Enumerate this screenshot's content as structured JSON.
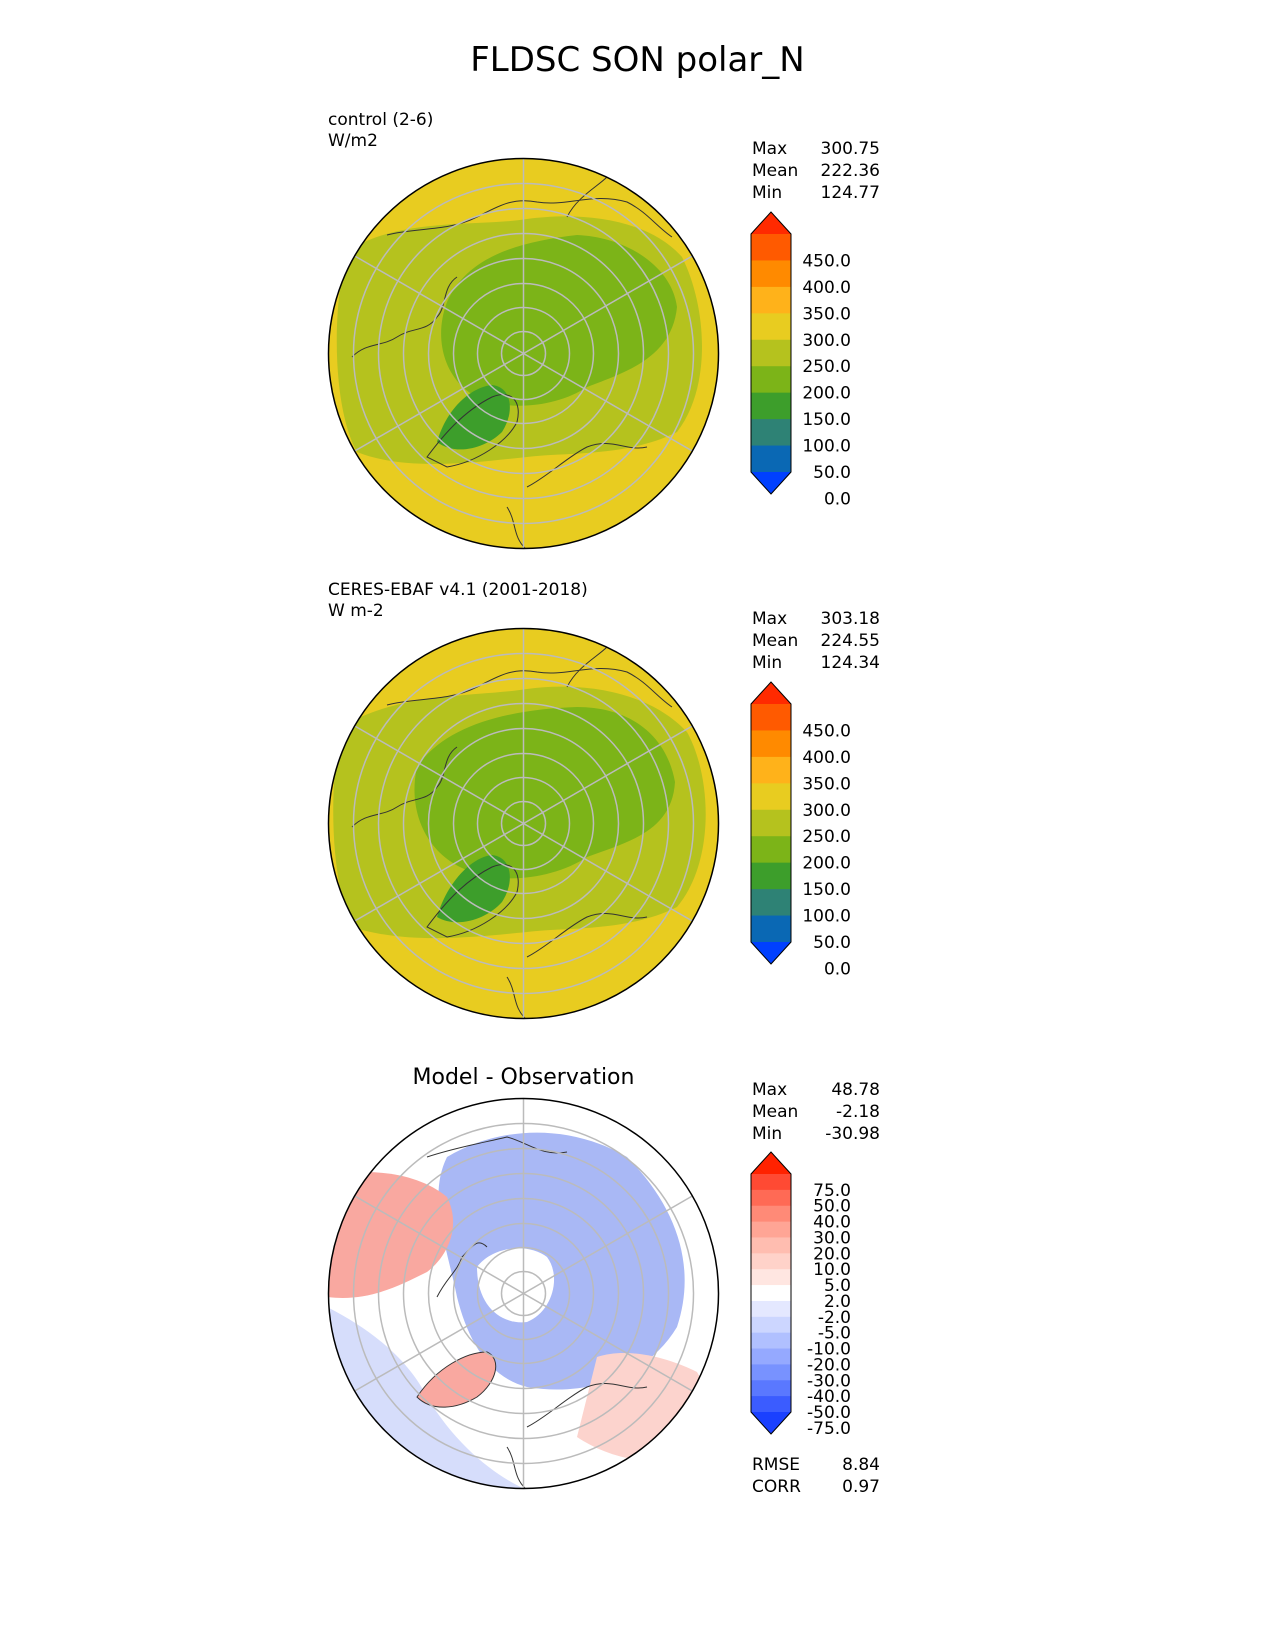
{
  "figure": {
    "title": "FLDSC SON polar_N"
  },
  "panels": [
    {
      "name": "control",
      "case_label": "control (2-6)",
      "units_label": "W/m2",
      "stats": {
        "max_label": "Max",
        "max": "300.75",
        "mean_label": "Mean",
        "mean": "222.36",
        "min_label": "Min",
        "min": "124.77"
      }
    },
    {
      "name": "observation",
      "case_label": "CERES-EBAF v4.1 (2001-2018)",
      "units_label": "W m-2",
      "stats": {
        "max_label": "Max",
        "max": "303.18",
        "mean_label": "Mean",
        "mean": "224.55",
        "min_label": "Min",
        "min": "124.34"
      }
    },
    {
      "name": "difference",
      "title": "Model - Observation",
      "stats": {
        "max_label": "Max",
        "max": "48.78",
        "mean_label": "Mean",
        "mean": "-2.18",
        "min_label": "Min",
        "min": "-30.98"
      },
      "metrics": {
        "rmse_label": "RMSE",
        "rmse": "8.84",
        "corr_label": "CORR",
        "corr": "0.97"
      }
    }
  ],
  "colorbars": {
    "field": {
      "labels": [
        "450.0",
        "400.0",
        "350.0",
        "300.0",
        "250.0",
        "200.0",
        "150.0",
        "100.0",
        "50.0",
        "0.0"
      ],
      "colors": [
        "#ff2a00",
        "#ff5a00",
        "#ff8a00",
        "#ffb21a",
        "#e8cc20",
        "#b5c21e",
        "#7cb418",
        "#3d9e2b",
        "#2e8275",
        "#0a68b4",
        "#0040ff"
      ]
    },
    "diff": {
      "labels": [
        "75.0",
        "50.0",
        "40.0",
        "30.0",
        "20.0",
        "10.0",
        "5.0",
        "2.0",
        "-2.0",
        "-5.0",
        "-10.0",
        "-20.0",
        "-30.0",
        "-40.0",
        "-50.0",
        "-75.0"
      ],
      "colors": [
        "#ff2200",
        "#ff4a33",
        "#ff6a55",
        "#ff8a77",
        "#ffa595",
        "#ffbdb0",
        "#ffd2c9",
        "#ffe6e1",
        "#ffffff",
        "#e4e8ff",
        "#ccd6ff",
        "#b0c0ff",
        "#95a9ff",
        "#7892ff",
        "#5a78ff",
        "#3b5cff",
        "#1a40ff"
      ]
    }
  },
  "map_colors": {
    "yellow": "#e8cc20",
    "olive": "#b5c21e",
    "green": "#7cb418",
    "dark_green": "#3d9e2b",
    "diff_blue": "#a9b8f5",
    "diff_light_blue": "#d6ddfb",
    "diff_red": "#f9a8a0",
    "diff_light_red": "#fcd3cd"
  }
}
